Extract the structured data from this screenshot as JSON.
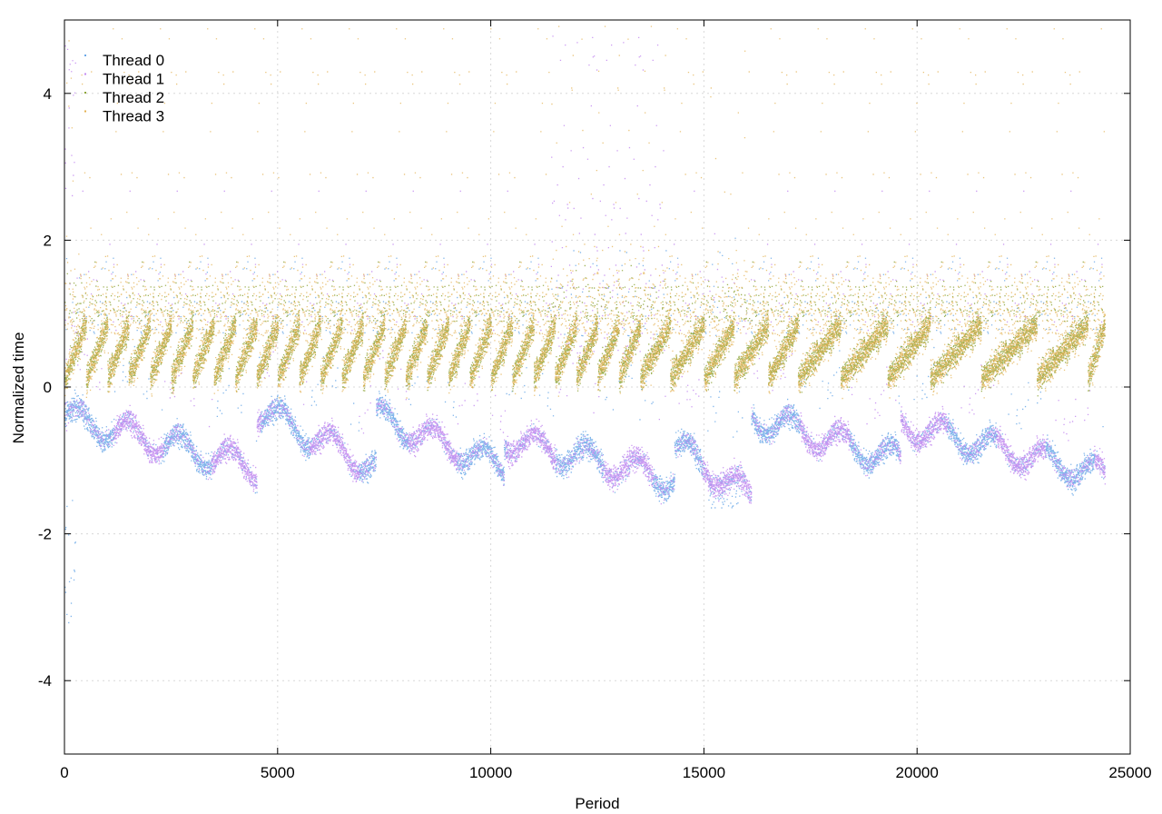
{
  "chart_data": {
    "type": "scatter",
    "title": "",
    "xlabel": "Period",
    "ylabel": "Normalized time",
    "xlim": [
      0,
      25000
    ],
    "ylim": [
      -5,
      5
    ],
    "grid": true,
    "legend_position": "top-left",
    "x_ticks": [
      {
        "value": 0,
        "label": "0"
      },
      {
        "value": 5000,
        "label": "5000"
      },
      {
        "value": 10000,
        "label": "10000"
      },
      {
        "value": 15000,
        "label": "15000"
      },
      {
        "value": 20000,
        "label": "20000"
      },
      {
        "value": 25000,
        "label": "25000"
      }
    ],
    "y_ticks": [
      {
        "value": -4,
        "label": "-4"
      },
      {
        "value": -2,
        "label": "-2"
      },
      {
        "value": 0,
        "label": "0"
      },
      {
        "value": 2,
        "label": "2"
      },
      {
        "value": 4,
        "label": "4"
      }
    ],
    "x_range_of_points": [
      0,
      24400
    ],
    "series": [
      {
        "name": "Thread 0",
        "color": "#6aa8e8",
        "typical_y_range": [
          -1.5,
          -0.3
        ],
        "description": "lower band"
      },
      {
        "name": "Thread 1",
        "color": "#c38af0",
        "typical_y_range": [
          -1.5,
          -0.3
        ],
        "description": "lower band with spikes near period 11500-14000"
      },
      {
        "name": "Thread 2",
        "color": "#8ea53a",
        "typical_y_range": [
          0,
          1.1
        ],
        "description": "upper band sawtooth"
      },
      {
        "name": "Thread 3",
        "color": "#e3b050",
        "typical_y_range": [
          0,
          1.1
        ],
        "description": "upper band sawtooth with outliers up to 5"
      }
    ],
    "sawtooth_resets": [
      0,
      500,
      1000,
      1500,
      2000,
      2500,
      3000,
      3500,
      4000,
      4500,
      5000,
      5500,
      6000,
      6500,
      7000,
      7500,
      8000,
      8500,
      9000,
      9500,
      10000,
      10500,
      11000,
      11500,
      12000,
      12500,
      13000,
      13500,
      14200,
      15000,
      15700,
      16500,
      17200,
      18200,
      19300,
      20300,
      21500,
      22800,
      24000
    ],
    "lower_band_segments": [
      {
        "x0": 0,
        "x1": 4500,
        "y_start": -0.4,
        "y_end": -1.1
      },
      {
        "x0": 4500,
        "x1": 7300,
        "y_start": -0.3,
        "y_end": -1.1
      },
      {
        "x0": 7300,
        "x1": 10300,
        "y_start": -0.4,
        "y_end": -1.1
      },
      {
        "x0": 10300,
        "x1": 14300,
        "y_start": -0.7,
        "y_end": -1.25
      },
      {
        "x0": 14300,
        "x1": 16100,
        "y_start": -0.8,
        "y_end": -1.5
      },
      {
        "x0": 16100,
        "x1": 19600,
        "y_start": -0.4,
        "y_end": -1.0
      },
      {
        "x0": 19600,
        "x1": 24400,
        "y_start": -0.5,
        "y_end": -1.2
      }
    ]
  }
}
